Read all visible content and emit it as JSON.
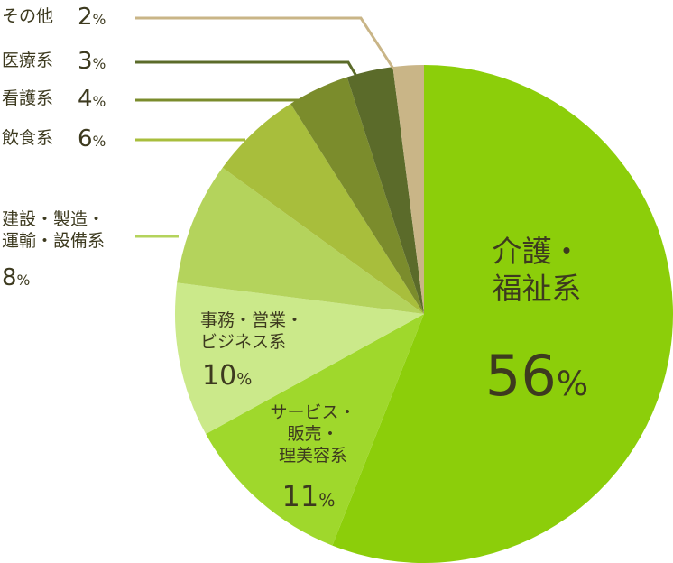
{
  "chart_data": {
    "type": "pie",
    "categories": [
      "介護・\n福祉系",
      "サービス・\n販売・\n理美容系",
      "事務・営業・\nビジネス系",
      "建設・製造・\n運輸・設備系",
      "飲食系",
      "看護系",
      "医療系",
      "その他"
    ],
    "values": [
      56,
      11,
      10,
      8,
      6,
      4,
      3,
      2
    ],
    "value_labels": [
      "56%",
      "11%",
      "10%",
      "8%",
      "6%",
      "4%",
      "3%",
      "2%"
    ],
    "colors": [
      "#8cce0a",
      "#9fd82c",
      "#cbe98a",
      "#b4d35c",
      "#a8be3c",
      "#7b8c2c",
      "#5b6b2a",
      "#c9b587"
    ]
  }
}
